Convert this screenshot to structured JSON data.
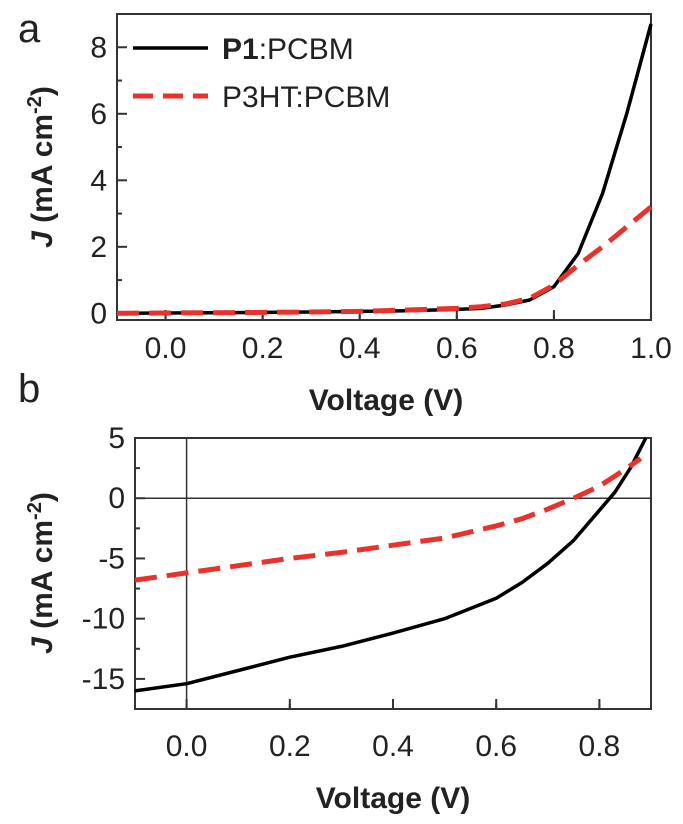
{
  "chart_data": [
    {
      "panel": "a",
      "type": "line",
      "xlabel": "Voltage (V)",
      "ylabel": {
        "symbol": "J",
        "text": " (mA cm",
        "exponent": "-2",
        "close": ")"
      },
      "xlim": [
        -0.1,
        1.0
      ],
      "ylim": [
        -0.2,
        9.0
      ],
      "xticks": [
        "0.0",
        "0.2",
        "0.4",
        "0.6",
        "0.8",
        "1.0"
      ],
      "yticks": [
        "0",
        "2",
        "4",
        "6",
        "8"
      ],
      "grid": false,
      "legend": {
        "placement": "top-left",
        "entries": [
          {
            "bold": "P1",
            "rest": ":PCBM",
            "color": "#000000",
            "style": "solid"
          },
          {
            "bold": "",
            "rest": "P3HT:PCBM",
            "color": "#e8322b",
            "style": "dashed"
          }
        ]
      },
      "series": [
        {
          "name": "P1:PCBM",
          "color": "#000000",
          "x": [
            -0.1,
            0.0,
            0.1,
            0.2,
            0.3,
            0.4,
            0.5,
            0.6,
            0.65,
            0.7,
            0.75,
            0.8,
            0.85,
            0.9,
            0.95,
            1.0
          ],
          "y": [
            0.0,
            0.01,
            0.02,
            0.03,
            0.04,
            0.06,
            0.08,
            0.12,
            0.15,
            0.25,
            0.4,
            0.8,
            1.8,
            3.6,
            6.0,
            8.7
          ]
        },
        {
          "name": "P3HT:PCBM",
          "color": "#e8322b",
          "x": [
            -0.1,
            0.0,
            0.1,
            0.2,
            0.3,
            0.4,
            0.5,
            0.6,
            0.65,
            0.7,
            0.75,
            0.8,
            0.85,
            0.9,
            0.95,
            1.0
          ],
          "y": [
            0.0,
            0.01,
            0.02,
            0.03,
            0.04,
            0.06,
            0.1,
            0.15,
            0.2,
            0.28,
            0.45,
            0.85,
            1.45,
            2.0,
            2.6,
            3.2
          ]
        }
      ]
    },
    {
      "panel": "b",
      "type": "line",
      "xlabel": "Voltage (V)",
      "ylabel": {
        "symbol": "J",
        "text": " (mA cm",
        "exponent": "-2",
        "close": ")"
      },
      "xlim": [
        -0.1,
        0.9
      ],
      "ylim": [
        -17.5,
        5.0
      ],
      "xticks": [
        "0.0",
        "0.2",
        "0.4",
        "0.6",
        "0.8"
      ],
      "yticks": [
        "5",
        "0",
        "-5",
        "-10",
        "-15"
      ],
      "grid": false,
      "series": [
        {
          "name": "P1:PCBM",
          "color": "#000000",
          "x": [
            -0.1,
            0.0,
            0.1,
            0.2,
            0.3,
            0.4,
            0.5,
            0.6,
            0.65,
            0.7,
            0.75,
            0.8,
            0.83,
            0.86,
            0.89
          ],
          "y": [
            -16.0,
            -15.4,
            -14.3,
            -13.2,
            -12.3,
            -11.2,
            -10.0,
            -8.3,
            -7.0,
            -5.4,
            -3.5,
            -1.0,
            0.5,
            2.5,
            5.0
          ]
        },
        {
          "name": "P3HT:PCBM",
          "color": "#e8322b",
          "x": [
            -0.1,
            0.0,
            0.1,
            0.2,
            0.3,
            0.4,
            0.5,
            0.6,
            0.65,
            0.7,
            0.75,
            0.8,
            0.85,
            0.88
          ],
          "y": [
            -6.8,
            -6.2,
            -5.6,
            -5.0,
            -4.5,
            -3.9,
            -3.3,
            -2.3,
            -1.7,
            -0.9,
            0.0,
            1.0,
            2.4,
            3.3
          ]
        }
      ]
    }
  ]
}
